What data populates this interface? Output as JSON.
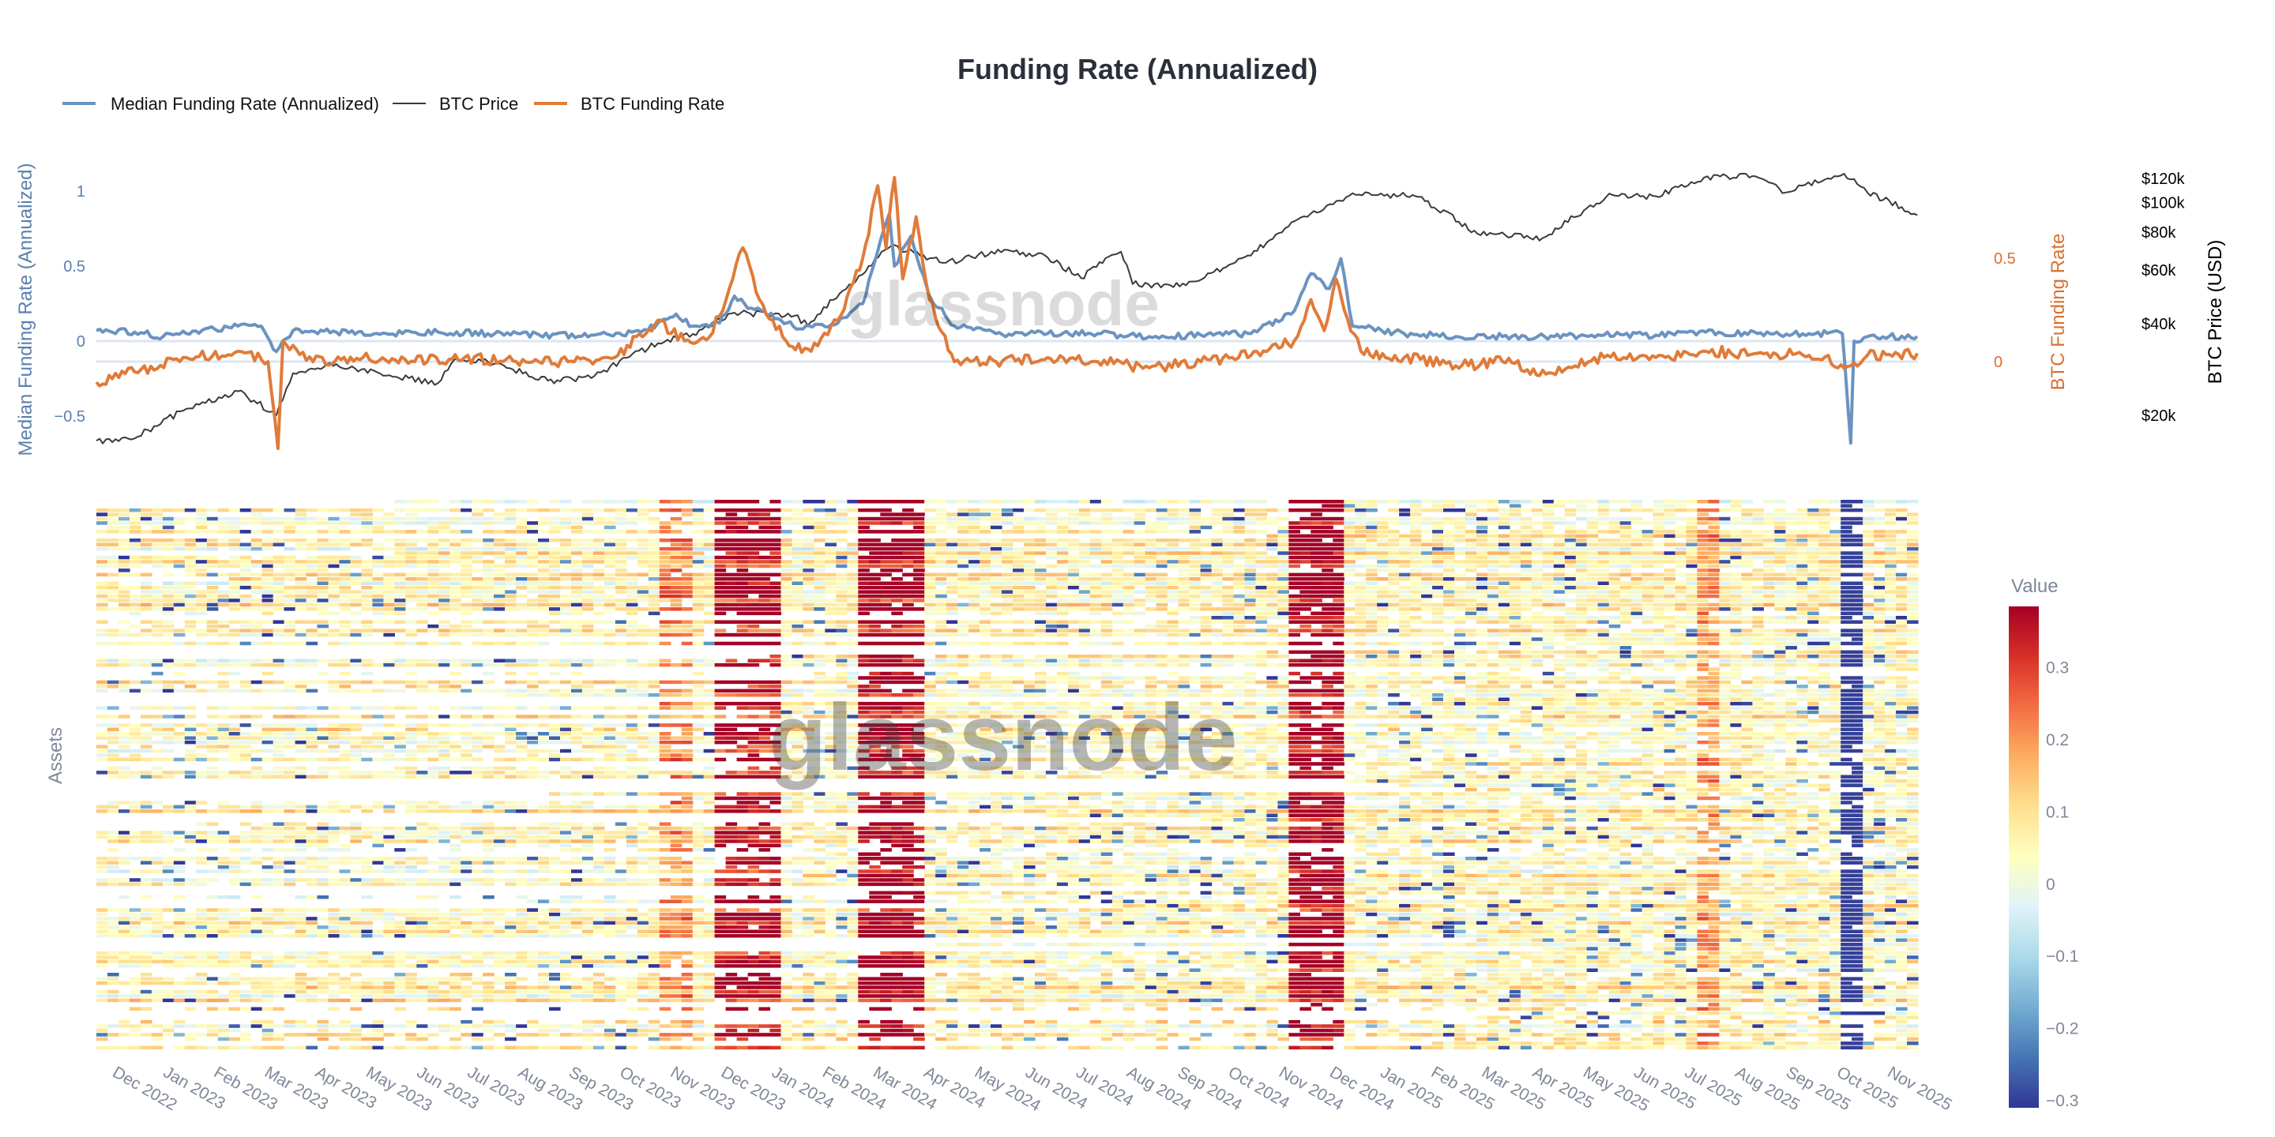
{
  "chart_data": [
    {
      "type": "line",
      "title": "Funding Rate (Annualized)",
      "legend": {
        "placement": "top-left",
        "items": [
          "Median Funding Rate (Annualized)",
          "BTC Price",
          "BTC Funding Rate"
        ]
      },
      "y_left": {
        "label": "Median Funding Rate (Annualized)",
        "ticks": [
          "1",
          "0.5",
          "0",
          "−0.5"
        ],
        "tick_values": [
          1,
          0.5,
          0,
          -0.5
        ],
        "color": "#5b7fae"
      },
      "y_right1": {
        "label": "BTC Funding Rate",
        "ticks": [
          "0.5",
          "0"
        ],
        "tick_values": [
          0.5,
          0
        ],
        "color": "#d9702c"
      },
      "y_right2": {
        "label": "BTC Price (USD)",
        "scale": "log",
        "ticks": [
          "$120k",
          "$100k",
          "$80k",
          "$60k",
          "$40k",
          "$20k"
        ],
        "tick_values": [
          120000,
          100000,
          80000,
          60000,
          40000,
          20000
        ],
        "color": "#000000"
      },
      "x_range": [
        "2022-11-22",
        "2025-11-19"
      ],
      "watermark": "glassnode",
      "series": [
        {
          "name": "Median Funding Rate (Annualized)",
          "color": "#6b93c0",
          "axis": "left",
          "points": [
            [
              "2022-11-22",
              0.07
            ],
            [
              "2022-12-15",
              0.06
            ],
            [
              "2023-01-01",
              0.03
            ],
            [
              "2023-01-15",
              0.05
            ],
            [
              "2023-02-01",
              0.08
            ],
            [
              "2023-02-15",
              0.1
            ],
            [
              "2023-03-01",
              0.1
            ],
            [
              "2023-03-10",
              -0.07
            ],
            [
              "2023-03-20",
              0.07
            ],
            [
              "2023-04-15",
              0.06
            ],
            [
              "2023-05-15",
              0.05
            ],
            [
              "2023-06-15",
              0.06
            ],
            [
              "2023-07-15",
              0.05
            ],
            [
              "2023-08-15",
              0.04
            ],
            [
              "2023-09-15",
              0.04
            ],
            [
              "2023-10-15",
              0.06
            ],
            [
              "2023-10-25",
              0.12
            ],
            [
              "2023-11-05",
              0.18
            ],
            [
              "2023-11-15",
              0.1
            ],
            [
              "2023-12-01",
              0.12
            ],
            [
              "2023-12-10",
              0.3
            ],
            [
              "2023-12-20",
              0.22
            ],
            [
              "2024-01-05",
              0.15
            ],
            [
              "2024-01-20",
              0.08
            ],
            [
              "2024-02-10",
              0.12
            ],
            [
              "2024-02-25",
              0.25
            ],
            [
              "2024-03-05",
              0.6
            ],
            [
              "2024-03-12",
              0.85
            ],
            [
              "2024-03-15",
              0.5
            ],
            [
              "2024-03-25",
              0.7
            ],
            [
              "2024-04-05",
              0.3
            ],
            [
              "2024-04-20",
              0.1
            ],
            [
              "2024-05-15",
              0.05
            ],
            [
              "2024-06-15",
              0.05
            ],
            [
              "2024-07-15",
              0.05
            ],
            [
              "2024-08-15",
              0.03
            ],
            [
              "2024-09-15",
              0.04
            ],
            [
              "2024-10-15",
              0.05
            ],
            [
              "2024-11-10",
              0.2
            ],
            [
              "2024-11-20",
              0.45
            ],
            [
              "2024-12-01",
              0.35
            ],
            [
              "2024-12-08",
              0.55
            ],
            [
              "2024-12-15",
              0.1
            ],
            [
              "2025-01-15",
              0.05
            ],
            [
              "2025-02-15",
              0.03
            ],
            [
              "2025-03-15",
              0.03
            ],
            [
              "2025-04-15",
              0.03
            ],
            [
              "2025-05-15",
              0.04
            ],
            [
              "2025-06-15",
              0.04
            ],
            [
              "2025-07-15",
              0.06
            ],
            [
              "2025-08-15",
              0.05
            ],
            [
              "2025-09-15",
              0.05
            ],
            [
              "2025-10-05",
              0.05
            ],
            [
              "2025-10-10",
              -0.68
            ],
            [
              "2025-10-12",
              0.0
            ],
            [
              "2025-10-20",
              0.03
            ],
            [
              "2025-11-19",
              0.03
            ]
          ]
        },
        {
          "name": "BTC Price",
          "color": "#3a3a3a",
          "axis": "right2",
          "points": [
            [
              "2022-11-22",
              16500
            ],
            [
              "2022-12-15",
              16800
            ],
            [
              "2023-01-15",
              21000
            ],
            [
              "2023-02-15",
              24000
            ],
            [
              "2023-03-10",
              20000
            ],
            [
              "2023-03-20",
              27500
            ],
            [
              "2023-04-15",
              29500
            ],
            [
              "2023-05-15",
              27000
            ],
            [
              "2023-06-15",
              25500
            ],
            [
              "2023-06-25",
              30500
            ],
            [
              "2023-07-15",
              30000
            ],
            [
              "2023-08-20",
              26000
            ],
            [
              "2023-09-15",
              26500
            ],
            [
              "2023-10-25",
              34500
            ],
            [
              "2023-11-15",
              37000
            ],
            [
              "2023-12-10",
              43500
            ],
            [
              "2024-01-15",
              42500
            ],
            [
              "2024-01-23",
              39500
            ],
            [
              "2024-02-15",
              52000
            ],
            [
              "2024-03-13",
              72000
            ],
            [
              "2024-04-15",
              63500
            ],
            [
              "2024-05-20",
              70000
            ],
            [
              "2024-06-15",
              66000
            ],
            [
              "2024-07-05",
              56500
            ],
            [
              "2024-07-29",
              69000
            ],
            [
              "2024-08-05",
              54000
            ],
            [
              "2024-09-06",
              53500
            ],
            [
              "2024-10-15",
              67000
            ],
            [
              "2024-11-12",
              88000
            ],
            [
              "2024-12-17",
              106000
            ],
            [
              "2025-01-20",
              106000
            ],
            [
              "2025-02-28",
              79000
            ],
            [
              "2025-04-08",
              76500
            ],
            [
              "2025-05-20",
              106000
            ],
            [
              "2025-06-15",
              105000
            ],
            [
              "2025-07-14",
              121000
            ],
            [
              "2025-08-14",
              122000
            ],
            [
              "2025-09-01",
              108000
            ],
            [
              "2025-10-06",
              124500
            ],
            [
              "2025-10-20",
              108000
            ],
            [
              "2025-11-19",
              91000
            ]
          ]
        },
        {
          "name": "BTC Funding Rate",
          "color": "#e07b39",
          "axis": "right1",
          "points": [
            [
              "2022-11-22",
              -0.1
            ],
            [
              "2022-12-15",
              -0.05
            ],
            [
              "2023-01-15",
              0.02
            ],
            [
              "2023-02-15",
              0.05
            ],
            [
              "2023-03-05",
              0.0
            ],
            [
              "2023-03-11",
              -0.42
            ],
            [
              "2023-03-14",
              0.1
            ],
            [
              "2023-04-01",
              0.0
            ],
            [
              "2023-05-01",
              0.02
            ],
            [
              "2023-06-01",
              0.0
            ],
            [
              "2023-07-01",
              0.02
            ],
            [
              "2023-08-01",
              0.0
            ],
            [
              "2023-09-01",
              0.0
            ],
            [
              "2023-10-01",
              0.03
            ],
            [
              "2023-10-25",
              0.2
            ],
            [
              "2023-11-10",
              0.1
            ],
            [
              "2023-11-25",
              0.12
            ],
            [
              "2023-12-05",
              0.3
            ],
            [
              "2023-12-15",
              0.55
            ],
            [
              "2023-12-25",
              0.3
            ],
            [
              "2024-01-10",
              0.1
            ],
            [
              "2024-01-25",
              0.05
            ],
            [
              "2024-02-10",
              0.2
            ],
            [
              "2024-02-25",
              0.5
            ],
            [
              "2024-03-05",
              0.85
            ],
            [
              "2024-03-10",
              0.55
            ],
            [
              "2024-03-15",
              0.89
            ],
            [
              "2024-03-20",
              0.4
            ],
            [
              "2024-03-28",
              0.7
            ],
            [
              "2024-04-05",
              0.3
            ],
            [
              "2024-04-20",
              0.0
            ],
            [
              "2024-05-15",
              0.0
            ],
            [
              "2024-06-15",
              0.02
            ],
            [
              "2024-07-15",
              0.0
            ],
            [
              "2024-08-15",
              -0.03
            ],
            [
              "2024-09-15",
              0.0
            ],
            [
              "2024-10-15",
              0.03
            ],
            [
              "2024-11-10",
              0.1
            ],
            [
              "2024-11-20",
              0.3
            ],
            [
              "2024-11-28",
              0.15
            ],
            [
              "2024-12-05",
              0.4
            ],
            [
              "2024-12-10",
              0.25
            ],
            [
              "2024-12-20",
              0.05
            ],
            [
              "2025-01-15",
              0.02
            ],
            [
              "2025-02-15",
              -0.02
            ],
            [
              "2025-03-15",
              0.0
            ],
            [
              "2025-04-10",
              -0.06
            ],
            [
              "2025-05-15",
              0.02
            ],
            [
              "2025-06-15",
              0.02
            ],
            [
              "2025-07-15",
              0.05
            ],
            [
              "2025-08-15",
              0.04
            ],
            [
              "2025-09-15",
              0.03
            ],
            [
              "2025-10-10",
              -0.02
            ],
            [
              "2025-10-20",
              0.03
            ],
            [
              "2025-11-19",
              0.04
            ]
          ]
        }
      ]
    },
    {
      "type": "heatmap",
      "ylabel": "Assets",
      "x_ticks": [
        "Dec 2022",
        "Jan 2023",
        "Feb 2023",
        "Mar 2023",
        "Apr 2023",
        "May 2023",
        "Jun 2023",
        "Jul 2023",
        "Aug 2023",
        "Sep 2023",
        "Oct 2023",
        "Nov 2023",
        "Dec 2023",
        "Jan 2024",
        "Feb 2024",
        "Mar 2024",
        "Apr 2024",
        "May 2024",
        "Jun 2024",
        "Jul 2024",
        "Aug 2024",
        "Sep 2024",
        "Oct 2024",
        "Nov 2024",
        "Dec 2024",
        "Jan 2025",
        "Feb 2025",
        "Mar 2025",
        "Apr 2025",
        "May 2025",
        "Jun 2025",
        "Jul 2025",
        "Aug 2025",
        "Sep 2025",
        "Oct 2025",
        "Nov 2025"
      ],
      "colorbar": {
        "title": "Value",
        "range": [
          -0.31,
          0.385
        ],
        "ticks": [
          "0.3",
          "0.2",
          "0.1",
          "0",
          "−0.1",
          "−0.2",
          "−0.3"
        ],
        "tick_values": [
          0.3,
          0.2,
          0.1,
          0,
          -0.1,
          -0.2,
          -0.3
        ],
        "colorscale": [
          "#313695",
          "#4575b4",
          "#74add1",
          "#abd9e9",
          "#e0f3f8",
          "#ffffbf",
          "#fee090",
          "#fdae61",
          "#f46d43",
          "#d73027",
          "#a50026"
        ]
      },
      "typical_value": 0.06,
      "hot_periods": [
        {
          "start": "2023-10-28",
          "end": "2023-11-12",
          "value": 0.2
        },
        {
          "start": "2023-11-25",
          "end": "2024-01-08",
          "value": 0.42
        },
        {
          "start": "2024-02-25",
          "end": "2024-03-18",
          "value": 0.5
        },
        {
          "start": "2024-03-20",
          "end": "2024-04-02",
          "value": 0.45
        },
        {
          "start": "2024-11-08",
          "end": "2024-12-10",
          "value": 0.5
        },
        {
          "start": "2025-07-10",
          "end": "2025-07-25",
          "value": 0.18
        }
      ],
      "cold_events": [
        {
          "date": "2025-10-10",
          "value": -0.3
        }
      ],
      "watermark": "glassnode"
    }
  ]
}
